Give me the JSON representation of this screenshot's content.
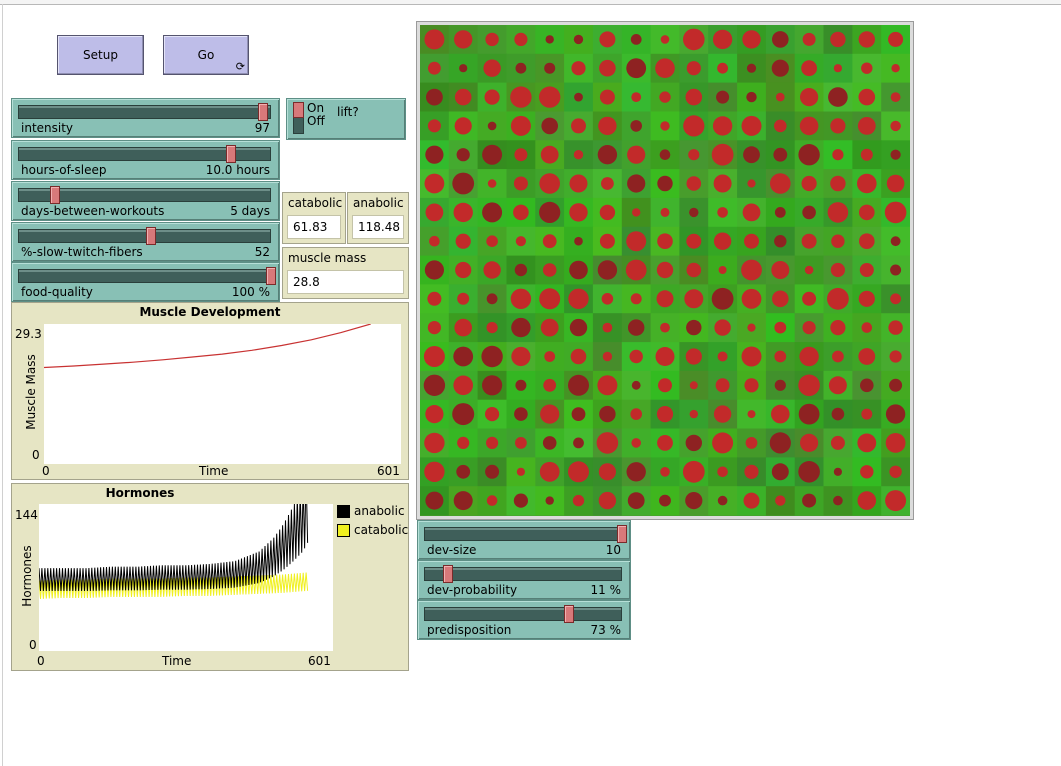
{
  "buttons": {
    "setup_label": "Setup",
    "go_label": "Go",
    "go_forever_icon": "forever-icon"
  },
  "sliders": [
    {
      "id": "intensity",
      "label": "intensity",
      "value_text": "97",
      "fraction": 0.97
    },
    {
      "id": "hours-of-sleep",
      "label": "hours-of-sleep",
      "value_text": "10.0 hours",
      "fraction": 0.84
    },
    {
      "id": "days-between-workouts",
      "label": "days-between-workouts",
      "value_text": "5 days",
      "fraction": 0.14
    },
    {
      "id": "slow-twitch",
      "label": "%-slow-twitch-fibers",
      "value_text": "52",
      "fraction": 0.52
    },
    {
      "id": "food-quality",
      "label": "food-quality",
      "value_text": "100 %",
      "fraction": 1.0
    }
  ],
  "switch": {
    "on_label": "On",
    "off_label": "Off",
    "name": "lift?",
    "state": "on"
  },
  "monitors": {
    "catabolic": {
      "label": "catabolic",
      "value": "61.83"
    },
    "anabolic": {
      "label": "anabolic",
      "value": "118.48"
    },
    "muscle_mass": {
      "label": "muscle mass",
      "value": "28.8"
    }
  },
  "world_sliders": [
    {
      "id": "dev-size",
      "label": "dev-size",
      "value_text": "10",
      "fraction": 1.0
    },
    {
      "id": "dev-probability",
      "label": "dev-probability",
      "value_text": "11 %",
      "fraction": 0.11
    },
    {
      "id": "predisposition",
      "label": "predisposition",
      "value_text": "73 %",
      "fraction": 0.73
    }
  ],
  "chart_data": [
    {
      "type": "line",
      "title": "Muscle Development",
      "xlabel": "Time",
      "ylabel": "Muscle Mass",
      "xlim": [
        0,
        601
      ],
      "ylim": [
        0,
        29.3
      ],
      "x_ticks": [
        "0",
        "601"
      ],
      "y_ticks": [
        "0",
        "29.3"
      ],
      "series": [
        {
          "color": "#c83232",
          "x": [
            0,
            50,
            100,
            150,
            200,
            250,
            300,
            350,
            400,
            450,
            500,
            550
          ],
          "y": [
            20.2,
            20.5,
            20.9,
            21.3,
            21.8,
            22.4,
            23.0,
            23.8,
            24.8,
            26.0,
            27.5,
            29.3
          ]
        }
      ]
    },
    {
      "type": "line",
      "title": "Hormones",
      "xlabel": "Time",
      "ylabel": "Hormones",
      "xlim": [
        0,
        601
      ],
      "ylim": [
        0,
        144
      ],
      "x_ticks": [
        "0",
        "601"
      ],
      "y_ticks": [
        "0",
        "144"
      ],
      "legend_position": "right",
      "series": [
        {
          "name": "anabolic",
          "color": "#000000",
          "x": [
            0,
            50,
            100,
            150,
            200,
            250,
            300,
            350,
            400,
            450,
            480,
            500,
            520,
            540,
            550
          ],
          "y": [
            70,
            70,
            70,
            71,
            71,
            72,
            72,
            73,
            75,
            82,
            92,
            102,
            115,
            130,
            144
          ]
        },
        {
          "name": "catabolic",
          "color": "#f0f020",
          "x": [
            0,
            50,
            100,
            150,
            200,
            250,
            300,
            350,
            400,
            450,
            500,
            550
          ],
          "y": [
            60,
            61,
            61,
            62,
            62,
            62,
            63,
            63,
            64,
            65,
            66,
            68
          ]
        }
      ]
    }
  ]
}
